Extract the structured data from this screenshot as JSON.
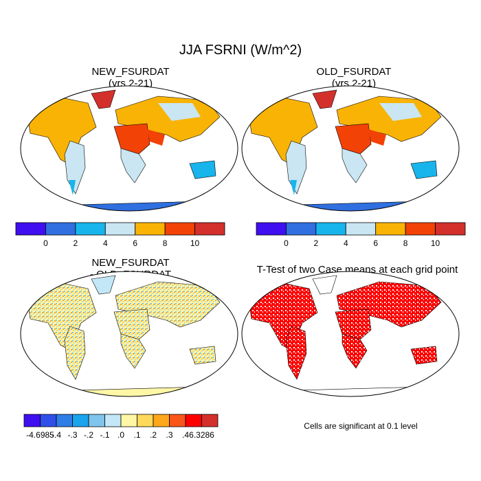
{
  "chart_data": [
    {
      "type": "heatmap",
      "title": "JJA FSRNI (W/m^2)",
      "panels": [
        {
          "title_line1": "NEW_FSURDAT",
          "title_line2": "(yrs 2-21)",
          "colorbar": {
            "tick_labels": [
              "0",
              "2",
              "4",
              "6",
              "8",
              "10"
            ],
            "colors": [
              "#3f0ff0",
              "#2f6fe0",
              "#18b4ec",
              "#c9e6f2",
              "#f9b304",
              "#f24206",
              "#d3302c"
            ]
          }
        },
        {
          "title_line1": "OLD_FSURDAT",
          "title_line2": "(yrs 2-21)",
          "colorbar": {
            "tick_labels": [
              "0",
              "2",
              "4",
              "6",
              "8",
              "10"
            ],
            "colors": [
              "#3f0ff0",
              "#2f6fe0",
              "#18b4ec",
              "#c9e6f2",
              "#f9b304",
              "#f24206",
              "#d3302c"
            ]
          }
        },
        {
          "title_line1": "NEW_FSURDAT",
          "title_line2": "- OLD_FSURDAT",
          "colorbar": {
            "tick_labels": [
              "-4.6985",
              "-.4",
              "-.3",
              "-.2",
              "-.1",
              ".0",
              ".1",
              ".2",
              ".3",
              ".4",
              "6.3286"
            ],
            "colors": [
              "#3f0ff0",
              "#2f4fe8",
              "#2f7de6",
              "#1aa4ee",
              "#7fc4ec",
              "#c3e7f6",
              "#fff7a6",
              "#ffd95a",
              "#ffa71a",
              "#f9561a",
              "#ff0000",
              "#d3302c"
            ]
          }
        },
        {
          "title_line1": "T-Test of two Case means at each grid point",
          "significance_color": "#ff0000",
          "note": "Cells are significant at 0.1 level"
        }
      ]
    }
  ]
}
